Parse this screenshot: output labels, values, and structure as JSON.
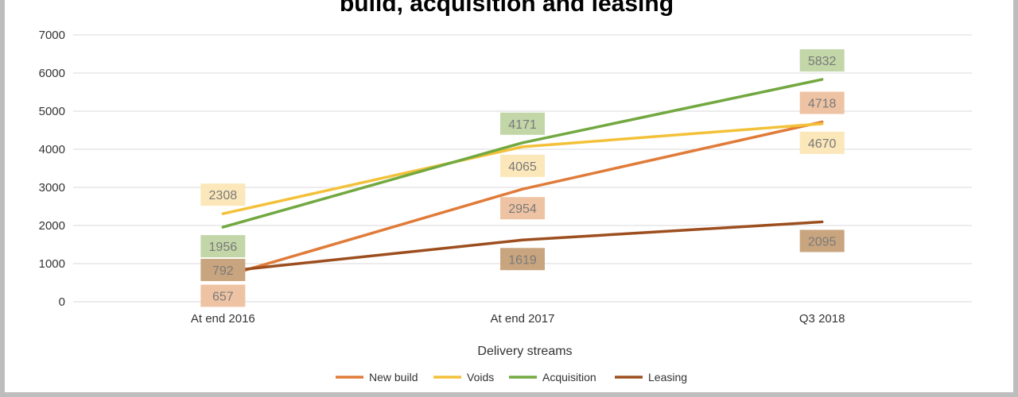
{
  "chart_data": {
    "type": "line",
    "title": "build, acquisition and leasing",
    "xlabel": "Delivery streams",
    "ylabel": "",
    "categories": [
      "At end 2016",
      "At end 2017",
      "Q3 2018"
    ],
    "ylim": [
      0,
      7000
    ],
    "yticks": [
      "0",
      "1000",
      "2000",
      "3000",
      "4000",
      "5000",
      "6000",
      "7000"
    ],
    "grid": true,
    "legend": "bottom",
    "series": [
      {
        "name": "New build",
        "values": [
          657,
          2954,
          4718
        ],
        "labels": [
          "657",
          "2954",
          "4718"
        ],
        "color": "#e07b39",
        "label_bg": "#eec3a3"
      },
      {
        "name": "Voids",
        "values": [
          2308,
          4065,
          4670
        ],
        "labels": [
          "2308",
          "4065",
          "4670"
        ],
        "color": "#f3c139",
        "label_bg": "#fbe7b9"
      },
      {
        "name": "Acquisition",
        "values": [
          1956,
          4171,
          5832
        ],
        "labels": [
          "1956",
          "4171",
          "5832"
        ],
        "color": "#72a840",
        "label_bg": "#c2d6a7"
      },
      {
        "name": "Leasing",
        "values": [
          792,
          1619,
          2095
        ],
        "labels": [
          "792",
          "1619",
          "2095"
        ],
        "color": "#9c4e1e",
        "label_bg": "#c9a57f"
      }
    ]
  }
}
